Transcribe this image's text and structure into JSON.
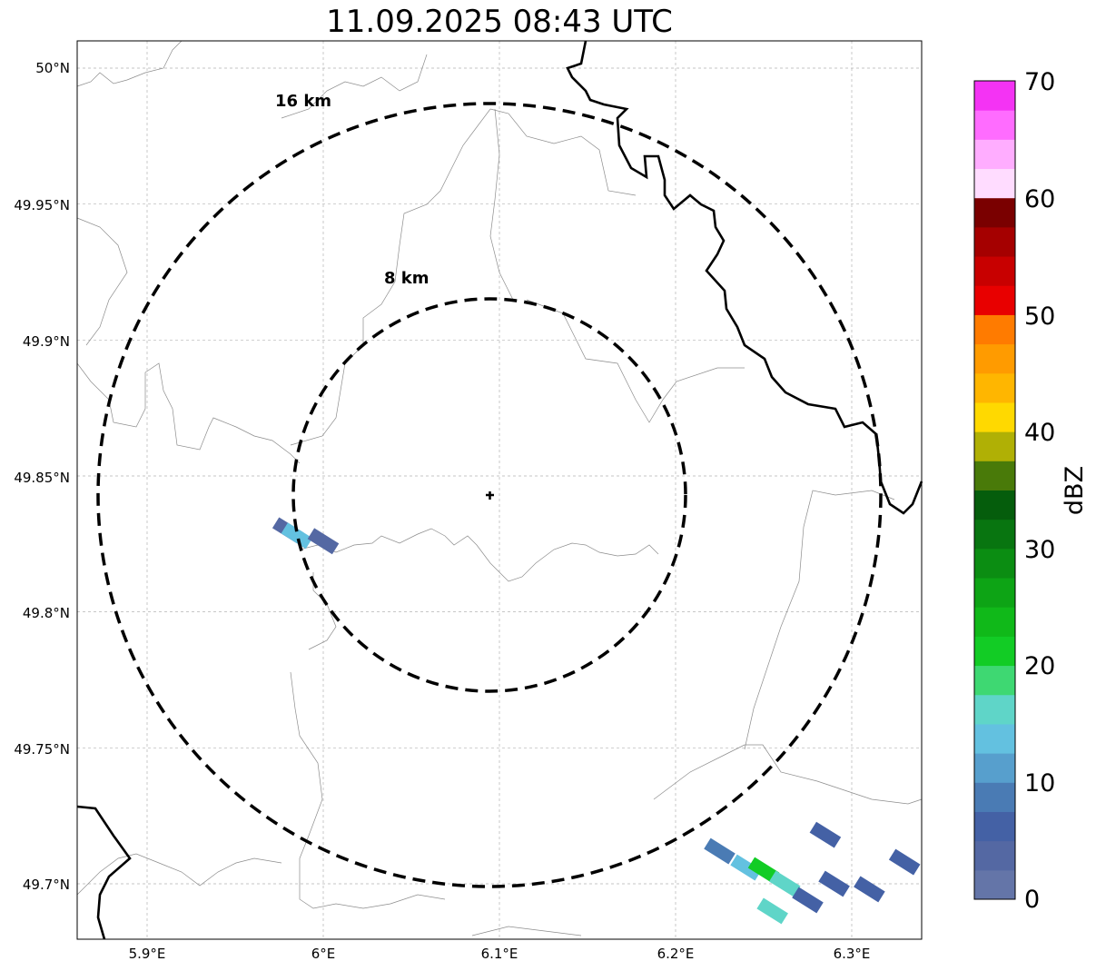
{
  "title": "11.09.2025 08:43 UTC",
  "lat_ticks": [
    "50°N",
    "49.95°N",
    "49.9°N",
    "49.85°N",
    "49.8°N",
    "49.75°N",
    "49.7°N"
  ],
  "lon_ticks": [
    "5.9°E",
    "6°E",
    "6.1°E",
    "6.2°E",
    "6.3°E"
  ],
  "rings": [
    {
      "label": "16 km",
      "radius_km": 16
    },
    {
      "label": "8 km",
      "radius_km": 8
    }
  ],
  "radar_site": {
    "lon": 6.095,
    "lat": 49.843,
    "marker": "cross-icon"
  },
  "colorbar": {
    "label": "dBZ",
    "ticks": [
      "0",
      "10",
      "20",
      "30",
      "40",
      "50",
      "60",
      "70"
    ],
    "colors": [
      "#6475a8",
      "#5468a3",
      "#4461a5",
      "#4a7bb4",
      "#579fcd",
      "#63c1e0",
      "#5fd5c8",
      "#3ed872",
      "#12cc25",
      "#10b919",
      "#0da415",
      "#0b8d12",
      "#087510",
      "#055d0c",
      "#497a09",
      "#b0b005",
      "#ffd900",
      "#ffb600",
      "#ff9b00",
      "#ff7b00",
      "#e80000",
      "#c80000",
      "#a50000",
      "#7a0000",
      "#ffdcff",
      "#ffadff",
      "#ff6cff",
      "#f433f4"
    ]
  },
  "echoes": [
    {
      "lon": 5.98,
      "lat": 49.83,
      "dbz": 3
    },
    {
      "lon": 5.985,
      "lat": 49.828,
      "dbz": 14
    },
    {
      "lon": 6.0,
      "lat": 49.826,
      "dbz": 4
    },
    {
      "lon": 6.225,
      "lat": 49.712,
      "dbz": 8
    },
    {
      "lon": 6.24,
      "lat": 49.706,
      "dbz": 14
    },
    {
      "lon": 6.25,
      "lat": 49.705,
      "dbz": 22
    },
    {
      "lon": 6.262,
      "lat": 49.7,
      "dbz": 16
    },
    {
      "lon": 6.275,
      "lat": 49.694,
      "dbz": 6
    },
    {
      "lon": 6.255,
      "lat": 49.69,
      "dbz": 15
    },
    {
      "lon": 6.29,
      "lat": 49.7,
      "dbz": 5
    },
    {
      "lon": 6.31,
      "lat": 49.698,
      "dbz": 7
    },
    {
      "lon": 6.285,
      "lat": 49.718,
      "dbz": 5
    },
    {
      "lon": 6.33,
      "lat": 49.708,
      "dbz": 6
    }
  ]
}
